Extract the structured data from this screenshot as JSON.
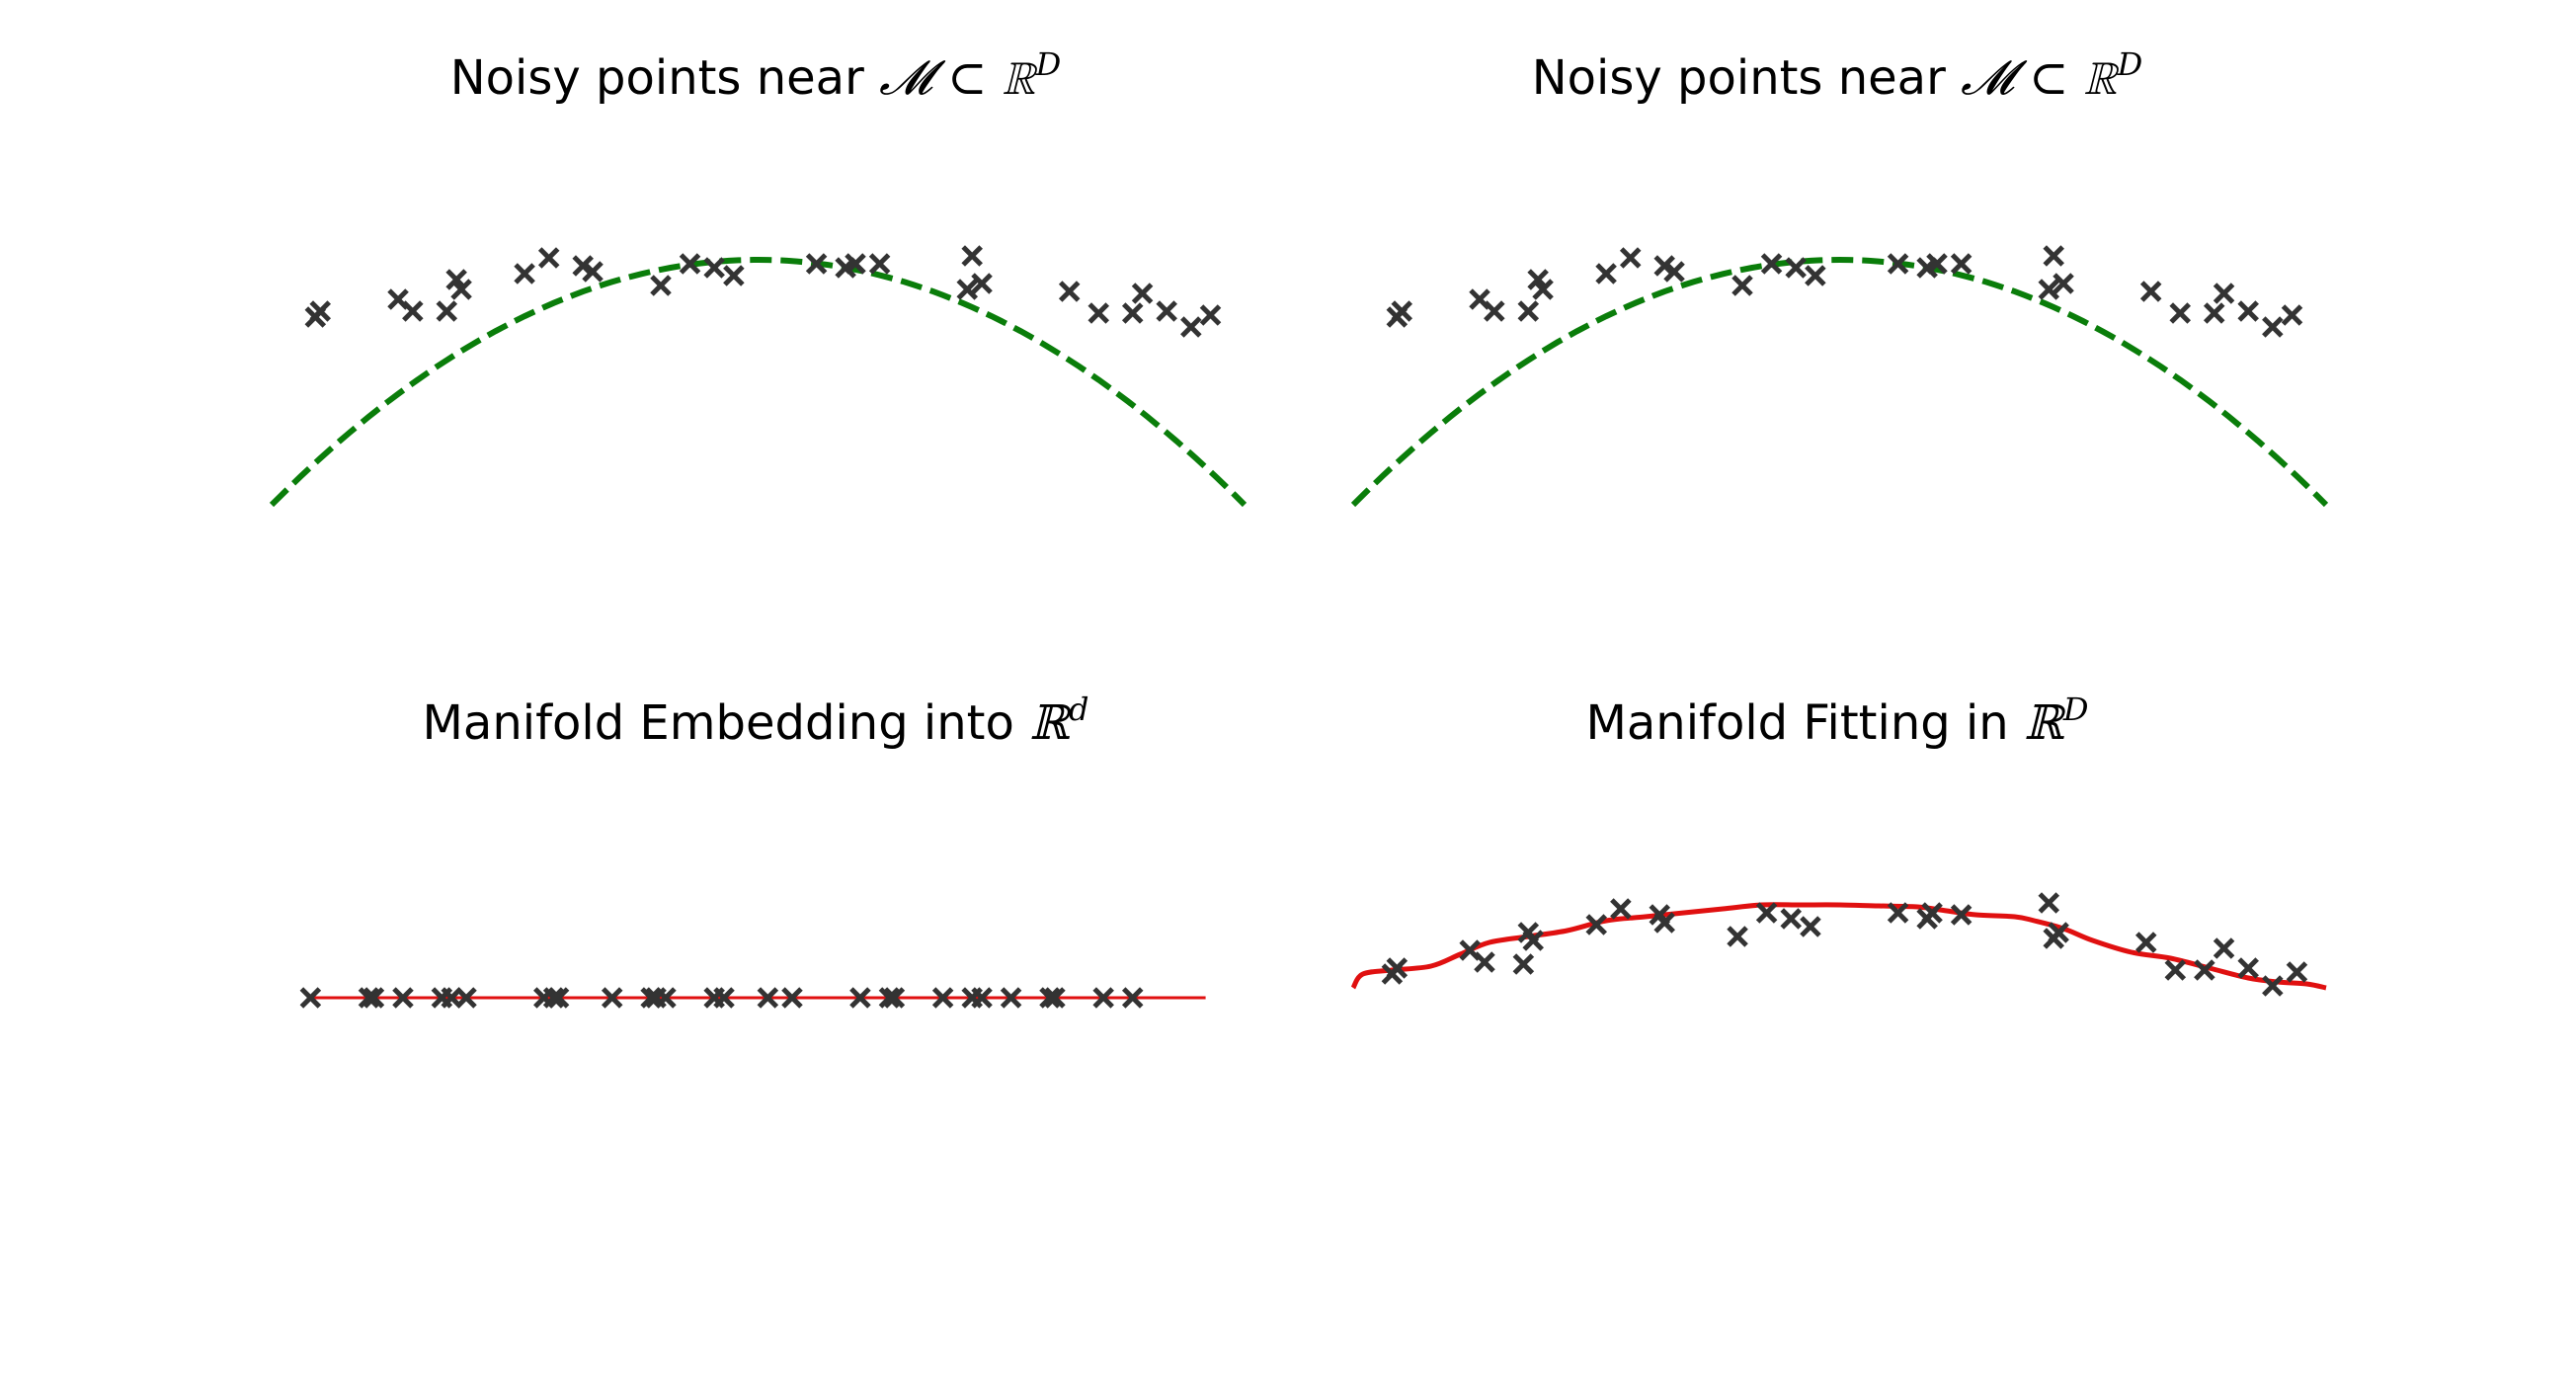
{
  "figure": {
    "colors": {
      "points": "#333333",
      "true_manifold": "#0a7d0a",
      "fitted_manifold": "#e01010",
      "embedding_line": "#e01010"
    }
  },
  "chart_data": [
    {
      "type": "scatter",
      "title": {
        "text": "Noisy points near ",
        "math": "𝓜 ⊂ ℝ",
        "sup": "D"
      },
      "xlim": [
        0,
        10
      ],
      "ylim": [
        -1.2,
        1.2
      ],
      "axes_visible": false,
      "curve": {
        "style": "dashed",
        "color": "#0a7d0a",
        "x": [
          0,
          10
        ],
        "formula": "y = 0.46 - 0.0496*(x-5)^2"
      },
      "points": {
        "x": [
          0.45,
          0.5,
          1.3,
          1.45,
          1.8,
          1.9,
          1.95,
          2.6,
          2.85,
          3.2,
          3.3,
          4.0,
          4.3,
          4.55,
          4.75,
          5.6,
          5.9,
          6.0,
          6.25,
          7.2,
          7.3,
          7.15,
          8.2,
          8.5,
          8.85,
          8.95,
          9.2,
          9.45,
          9.65
        ],
        "y": [
          0.17,
          0.2,
          0.26,
          0.2,
          0.2,
          0.36,
          0.31,
          0.39,
          0.47,
          0.43,
          0.4,
          0.33,
          0.44,
          0.42,
          0.38,
          0.44,
          0.42,
          0.44,
          0.44,
          0.48,
          0.34,
          0.31,
          0.3,
          0.19,
          0.19,
          0.29,
          0.2,
          0.12,
          0.18
        ]
      }
    },
    {
      "type": "scatter",
      "title": {
        "text": "Noisy points near ",
        "math": "𝓜 ⊂ ℝ",
        "sup": "D"
      },
      "xlim": [
        0,
        10
      ],
      "ylim": [
        -1.2,
        1.2
      ],
      "axes_visible": false,
      "curve": {
        "style": "dashed",
        "color": "#0a7d0a",
        "x": [
          0,
          10
        ],
        "formula": "y = 0.46 - 0.0496*(x-5)^2"
      },
      "points": {
        "x": [
          0.45,
          0.5,
          1.3,
          1.45,
          1.8,
          1.9,
          1.95,
          2.6,
          2.85,
          3.2,
          3.3,
          4.0,
          4.3,
          4.55,
          4.75,
          5.6,
          5.9,
          6.0,
          6.25,
          7.2,
          7.3,
          7.15,
          8.2,
          8.5,
          8.85,
          8.95,
          9.2,
          9.45,
          9.65
        ],
        "y": [
          0.17,
          0.2,
          0.26,
          0.2,
          0.2,
          0.36,
          0.31,
          0.39,
          0.47,
          0.43,
          0.4,
          0.33,
          0.44,
          0.42,
          0.38,
          0.44,
          0.42,
          0.44,
          0.44,
          0.48,
          0.34,
          0.31,
          0.3,
          0.19,
          0.19,
          0.29,
          0.2,
          0.12,
          0.18
        ]
      }
    },
    {
      "type": "scatter",
      "title": {
        "text": "Manifold Embedding into ",
        "math": "ℝ",
        "sup": "d"
      },
      "xlim": [
        0,
        10
      ],
      "ylim": [
        -1.2,
        1.2
      ],
      "axes_visible": false,
      "line": {
        "color": "#e01010",
        "x": [
          0.4,
          9.6
        ],
        "y": 0
      },
      "points": {
        "x": [
          0.4,
          1.0,
          1.05,
          1.35,
          1.75,
          1.85,
          2.0,
          2.8,
          2.9,
          2.95,
          3.5,
          3.9,
          3.95,
          4.05,
          4.55,
          4.65,
          5.1,
          5.35,
          6.05,
          6.35,
          6.4,
          6.9,
          7.2,
          7.3,
          7.6,
          8.0,
          8.05,
          8.55,
          8.85
        ],
        "y": [
          0,
          0,
          0,
          0,
          0,
          0,
          0,
          0,
          0,
          0,
          0,
          0,
          0,
          0,
          0,
          0,
          0,
          0,
          0,
          0,
          0,
          0,
          0,
          0,
          0,
          0,
          0,
          0,
          0
        ]
      }
    },
    {
      "type": "scatter",
      "title": {
        "text": "Manifold Fitting in ",
        "math": "ℝ",
        "sup": "D"
      },
      "xlim": [
        0,
        10
      ],
      "ylim": [
        -1.2,
        1.2
      ],
      "axes_visible": false,
      "curve": {
        "style": "solid",
        "color": "#e01010",
        "x": [
          0,
          0.1,
          0.4,
          0.8,
          1.1,
          1.4,
          1.8,
          2.2,
          2.6,
          3.0,
          3.4,
          3.8,
          4.2,
          4.6,
          5.0,
          5.4,
          5.8,
          6.1,
          6.4,
          6.8,
          7.0,
          7.3,
          7.6,
          8.0,
          8.4,
          8.8,
          9.2,
          9.5,
          9.8,
          10.0
        ],
        "y": [
          0.05,
          0.12,
          0.14,
          0.16,
          0.22,
          0.28,
          0.31,
          0.34,
          0.39,
          0.41,
          0.43,
          0.45,
          0.47,
          0.47,
          0.47,
          0.465,
          0.46,
          0.44,
          0.42,
          0.41,
          0.39,
          0.35,
          0.29,
          0.23,
          0.2,
          0.15,
          0.1,
          0.08,
          0.07,
          0.05
        ]
      },
      "points": {
        "x": [
          0.4,
          0.45,
          1.2,
          1.35,
          1.75,
          1.8,
          1.85,
          2.5,
          2.75,
          3.15,
          3.2,
          3.95,
          4.25,
          4.5,
          4.7,
          5.6,
          5.9,
          5.95,
          6.25,
          7.15,
          7.2,
          7.25,
          8.15,
          8.45,
          8.75,
          8.95,
          9.2,
          9.45,
          9.7
        ],
        "y": [
          0.12,
          0.15,
          0.24,
          0.18,
          0.17,
          0.33,
          0.29,
          0.37,
          0.45,
          0.42,
          0.38,
          0.31,
          0.43,
          0.4,
          0.36,
          0.43,
          0.4,
          0.43,
          0.42,
          0.48,
          0.3,
          0.33,
          0.28,
          0.14,
          0.14,
          0.25,
          0.15,
          0.06,
          0.13
        ]
      }
    }
  ]
}
